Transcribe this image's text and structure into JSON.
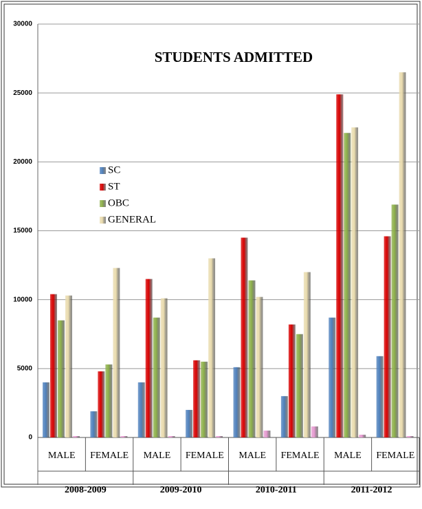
{
  "chart_data": {
    "type": "bar",
    "title": "STUDENTS ADMITTED",
    "categories": [
      "MALE",
      "FEMALE",
      "MALE",
      "FEMALE",
      "MALE",
      "FEMALE",
      "MALE",
      "FEMALE"
    ],
    "groups": [
      "2008-2009",
      "2009-2010",
      "2010-2011",
      "2011-2012"
    ],
    "series": [
      {
        "name": "SC",
        "color": "#4f81bd",
        "values": [
          4000,
          1900,
          4000,
          2000,
          5100,
          3000,
          8700,
          5900
        ]
      },
      {
        "name": "ST",
        "color": "#d80000",
        "values": [
          10400,
          4800,
          11500,
          5600,
          14500,
          8200,
          24900,
          14600
        ]
      },
      {
        "name": "OBC",
        "color": "#8db04a",
        "values": [
          8500,
          5300,
          8700,
          5500,
          11400,
          7500,
          22100,
          16900
        ]
      },
      {
        "name": "GENERAL",
        "color": "#e9dbad",
        "values": [
          10300,
          12300,
          10100,
          13000,
          10200,
          12000,
          22500,
          26500
        ]
      },
      {
        "color": "#e59ad0",
        "values": [
          100,
          100,
          100,
          100,
          500,
          800,
          200,
          100
        ]
      }
    ],
    "ylim": [
      0,
      30000
    ],
    "yticks": [
      0,
      5000,
      10000,
      15000,
      20000,
      25000,
      30000
    ],
    "grid": true
  }
}
